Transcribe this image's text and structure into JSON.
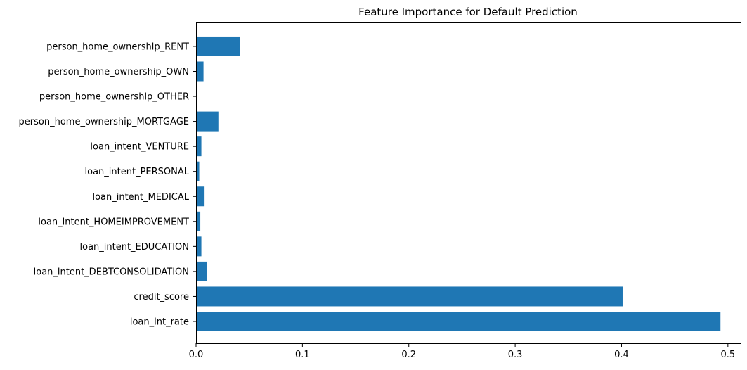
{
  "chart_data": {
    "type": "bar",
    "orientation": "horizontal",
    "title": "Feature Importance for Default Prediction",
    "xlabel": "",
    "ylabel": "",
    "xlim": [
      0,
      0.512
    ],
    "xticks": [
      0.0,
      0.1,
      0.2,
      0.3,
      0.4,
      0.5
    ],
    "xtick_labels": [
      "0.0",
      "0.1",
      "0.2",
      "0.3",
      "0.4",
      "0.5"
    ],
    "grid": false,
    "bar_color": "#1f77b4",
    "categories": [
      "loan_int_rate",
      "credit_score",
      "loan_intent_DEBTCONSOLIDATION",
      "loan_intent_EDUCATION",
      "loan_intent_HOMEIMPROVEMENT",
      "loan_intent_MEDICAL",
      "loan_intent_PERSONAL",
      "loan_intent_VENTURE",
      "person_home_ownership_MORTGAGE",
      "person_home_ownership_OTHER",
      "person_home_ownership_OWN",
      "person_home_ownership_RENT"
    ],
    "values": [
      0.493,
      0.401,
      0.01,
      0.005,
      0.004,
      0.008,
      0.003,
      0.005,
      0.021,
      0.0,
      0.007,
      0.041
    ]
  }
}
